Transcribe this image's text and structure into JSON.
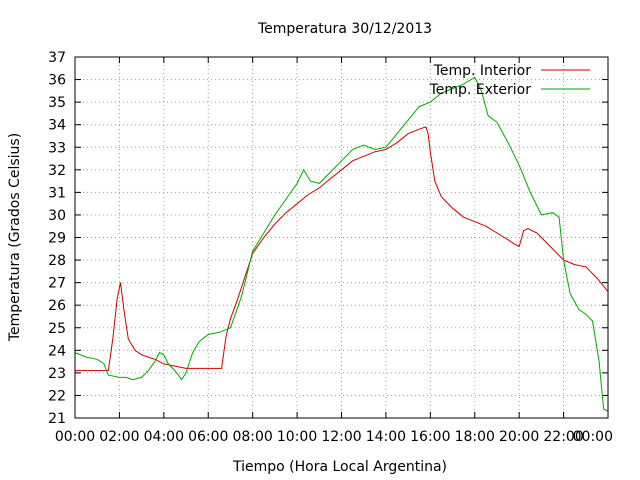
{
  "chart_data": {
    "type": "line",
    "title": "Temperatura 30/12/2013",
    "xlabel": "Tiempo (Hora Local Argentina)",
    "ylabel": "Temperatura (Grados Celsius)",
    "x_unit": "hours",
    "xlim": [
      0,
      24
    ],
    "ylim": [
      21,
      37
    ],
    "x_ticks": [
      0,
      2,
      4,
      6,
      8,
      10,
      12,
      14,
      16,
      18,
      20,
      22,
      24
    ],
    "x_tick_labels": [
      "00:00",
      "02:00",
      "04:00",
      "06:00",
      "08:00",
      "10:00",
      "12:00",
      "14:00",
      "16:00",
      "18:00",
      "20:00",
      "22:00",
      "00:00"
    ],
    "y_ticks": [
      21,
      22,
      23,
      24,
      25,
      26,
      27,
      28,
      29,
      30,
      31,
      32,
      33,
      34,
      35,
      36,
      37
    ],
    "grid": true,
    "legend_position": "top-right",
    "series": [
      {
        "name": "Temp. Interior",
        "color": "#cc0000",
        "points": [
          [
            0.0,
            23.1
          ],
          [
            1.0,
            23.1
          ],
          [
            1.5,
            23.1
          ],
          [
            1.7,
            24.5
          ],
          [
            1.9,
            26.3
          ],
          [
            2.05,
            27.0
          ],
          [
            2.2,
            25.8
          ],
          [
            2.4,
            24.5
          ],
          [
            2.7,
            24.0
          ],
          [
            3.0,
            23.8
          ],
          [
            3.3,
            23.7
          ],
          [
            3.6,
            23.6
          ],
          [
            4.0,
            23.4
          ],
          [
            4.5,
            23.3
          ],
          [
            5.0,
            23.2
          ],
          [
            6.0,
            23.2
          ],
          [
            6.6,
            23.2
          ],
          [
            6.8,
            24.6
          ],
          [
            7.0,
            25.4
          ],
          [
            7.3,
            26.2
          ],
          [
            7.6,
            27.1
          ],
          [
            8.0,
            28.3
          ],
          [
            8.5,
            29.0
          ],
          [
            9.0,
            29.6
          ],
          [
            9.5,
            30.1
          ],
          [
            10.0,
            30.5
          ],
          [
            10.5,
            30.9
          ],
          [
            11.0,
            31.2
          ],
          [
            11.5,
            31.6
          ],
          [
            12.0,
            32.0
          ],
          [
            12.5,
            32.4
          ],
          [
            13.0,
            32.6
          ],
          [
            13.5,
            32.8
          ],
          [
            14.0,
            32.9
          ],
          [
            14.5,
            33.2
          ],
          [
            15.0,
            33.6
          ],
          [
            15.5,
            33.8
          ],
          [
            15.8,
            33.9
          ],
          [
            15.9,
            33.6
          ],
          [
            16.0,
            32.8
          ],
          [
            16.2,
            31.5
          ],
          [
            16.5,
            30.8
          ],
          [
            17.0,
            30.3
          ],
          [
            17.5,
            29.9
          ],
          [
            18.0,
            29.7
          ],
          [
            18.5,
            29.5
          ],
          [
            19.0,
            29.2
          ],
          [
            19.5,
            28.9
          ],
          [
            19.8,
            28.7
          ],
          [
            20.0,
            28.6
          ],
          [
            20.2,
            29.3
          ],
          [
            20.4,
            29.4
          ],
          [
            20.8,
            29.2
          ],
          [
            21.2,
            28.8
          ],
          [
            21.6,
            28.4
          ],
          [
            22.0,
            28.0
          ],
          [
            22.5,
            27.8
          ],
          [
            23.0,
            27.7
          ],
          [
            23.5,
            27.2
          ],
          [
            24.0,
            26.6
          ]
        ]
      },
      {
        "name": "Temp. Exterior",
        "color": "#00aa00",
        "points": [
          [
            0.0,
            23.9
          ],
          [
            0.5,
            23.7
          ],
          [
            1.0,
            23.6
          ],
          [
            1.3,
            23.4
          ],
          [
            1.5,
            22.9
          ],
          [
            2.0,
            22.8
          ],
          [
            2.3,
            22.8
          ],
          [
            2.6,
            22.7
          ],
          [
            3.0,
            22.8
          ],
          [
            3.3,
            23.1
          ],
          [
            3.6,
            23.5
          ],
          [
            3.8,
            23.9
          ],
          [
            4.0,
            23.8
          ],
          [
            4.2,
            23.4
          ],
          [
            4.5,
            23.1
          ],
          [
            4.8,
            22.7
          ],
          [
            5.0,
            23.0
          ],
          [
            5.3,
            23.9
          ],
          [
            5.6,
            24.4
          ],
          [
            6.0,
            24.7
          ],
          [
            6.5,
            24.8
          ],
          [
            7.0,
            25.0
          ],
          [
            7.5,
            26.4
          ],
          [
            8.0,
            28.4
          ],
          [
            8.5,
            29.2
          ],
          [
            9.0,
            30.0
          ],
          [
            9.5,
            30.7
          ],
          [
            10.0,
            31.4
          ],
          [
            10.3,
            32.0
          ],
          [
            10.6,
            31.5
          ],
          [
            11.0,
            31.4
          ],
          [
            11.5,
            31.9
          ],
          [
            12.0,
            32.4
          ],
          [
            12.5,
            32.9
          ],
          [
            13.0,
            33.1
          ],
          [
            13.5,
            32.9
          ],
          [
            14.0,
            33.0
          ],
          [
            14.5,
            33.6
          ],
          [
            15.0,
            34.2
          ],
          [
            15.5,
            34.8
          ],
          [
            16.0,
            35.0
          ],
          [
            16.5,
            35.4
          ],
          [
            17.0,
            35.6
          ],
          [
            17.5,
            35.8
          ],
          [
            18.0,
            36.1
          ],
          [
            18.3,
            35.5
          ],
          [
            18.6,
            34.4
          ],
          [
            19.0,
            34.1
          ],
          [
            19.5,
            33.2
          ],
          [
            20.0,
            32.2
          ],
          [
            20.5,
            31.0
          ],
          [
            21.0,
            30.0
          ],
          [
            21.5,
            30.1
          ],
          [
            21.8,
            29.9
          ],
          [
            22.0,
            28.0
          ],
          [
            22.3,
            26.5
          ],
          [
            22.7,
            25.8
          ],
          [
            23.0,
            25.6
          ],
          [
            23.3,
            25.3
          ],
          [
            23.6,
            23.5
          ],
          [
            23.8,
            21.4
          ],
          [
            24.0,
            21.3
          ]
        ]
      }
    ]
  }
}
